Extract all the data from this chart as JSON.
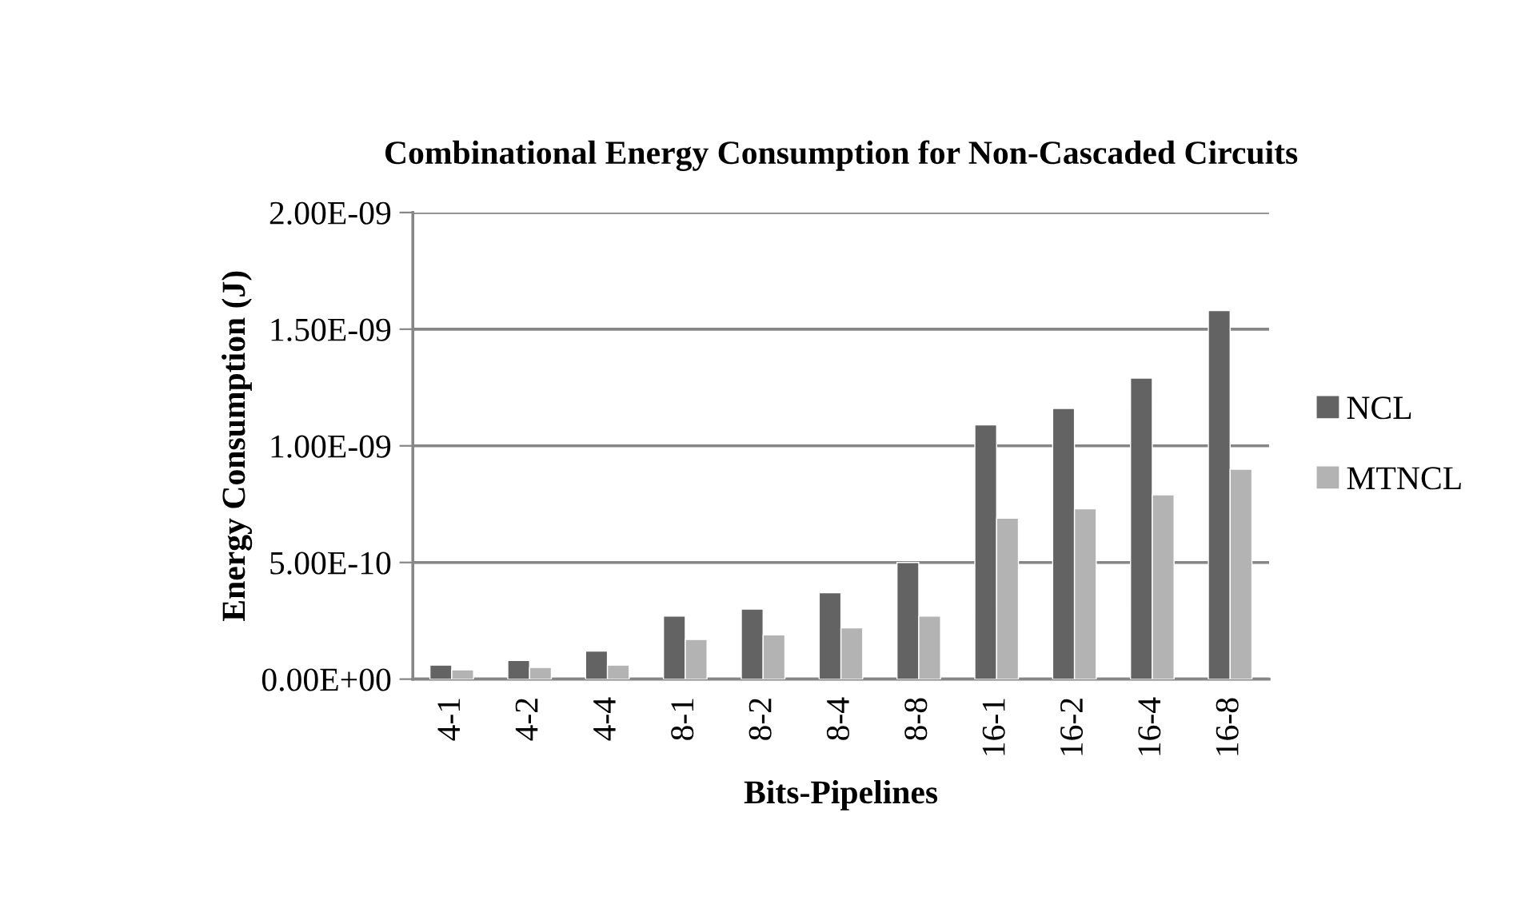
{
  "chart_data": {
    "type": "bar",
    "title": "Combinational Energy Consumption for Non-Cascaded Circuits",
    "xlabel": "Bits-Pipelines",
    "ylabel": "Energy Consumption (J)",
    "categories": [
      "4-1",
      "4-2",
      "4-4",
      "8-1",
      "8-2",
      "8-4",
      "8-8",
      "16-1",
      "16-2",
      "16-4",
      "16-8"
    ],
    "series": [
      {
        "name": "NCL",
        "color": "#636363",
        "values": [
          6e-11,
          8e-11,
          1.2e-10,
          2.7e-10,
          3e-10,
          3.7e-10,
          5e-10,
          1.09e-09,
          1.16e-09,
          1.29e-09,
          1.58e-09
        ]
      },
      {
        "name": "MTNCL",
        "color": "#b3b3b3",
        "values": [
          4e-11,
          5e-11,
          6e-11,
          1.7e-10,
          1.9e-10,
          2.2e-10,
          2.7e-10,
          6.9e-10,
          7.3e-10,
          7.9e-10,
          9e-10
        ]
      }
    ],
    "ylim": [
      0,
      2e-09
    ],
    "yticks": [
      {
        "value": 0,
        "label": "0.00E+00"
      },
      {
        "value": 5e-10,
        "label": "5.00E-10"
      },
      {
        "value": 1e-09,
        "label": "1.00E-09"
      },
      {
        "value": 1.5e-09,
        "label": "1.50E-09"
      },
      {
        "value": 2e-09,
        "label": "2.00E-09"
      }
    ],
    "grid": "y",
    "legend": "right"
  }
}
